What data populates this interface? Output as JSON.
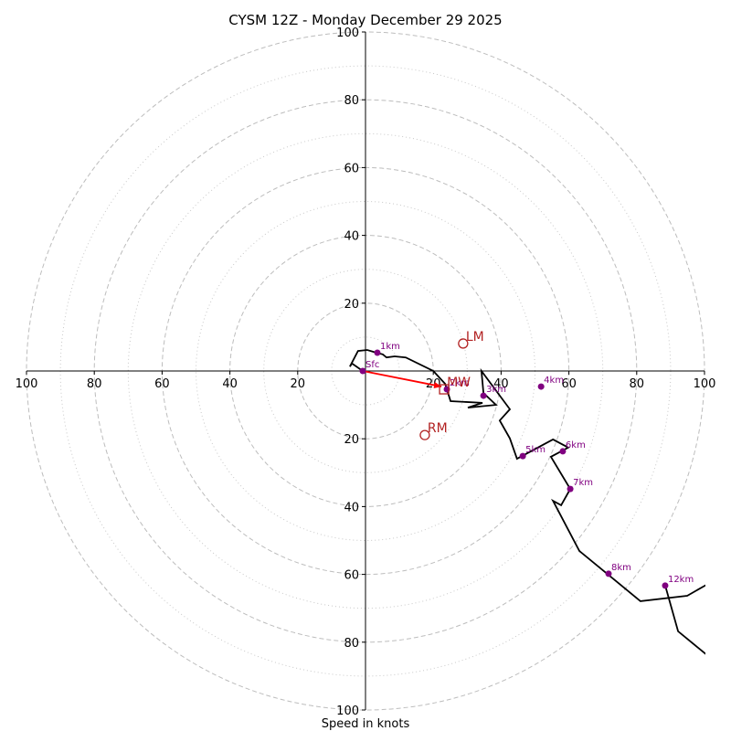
{
  "chart_data": {
    "type": "line",
    "title": "CYSM 12Z - Monday December 29 2025",
    "xlabel": "Speed in knots",
    "ylabel": "",
    "range": 100,
    "ring_major": [
      20,
      40,
      60,
      80,
      100
    ],
    "ring_minor": [
      10,
      30,
      50,
      70,
      90
    ],
    "x_tick_labels": [
      "100",
      "80",
      "60",
      "40",
      "20",
      "20",
      "40",
      "60",
      "80",
      "100"
    ],
    "x_tick_values": [
      -100,
      -80,
      -60,
      -40,
      -20,
      20,
      40,
      60,
      80,
      100
    ],
    "y_tick_labels": [
      "100",
      "80",
      "60",
      "40",
      "20",
      "20",
      "40",
      "60",
      "80",
      "100"
    ],
    "y_tick_values": [
      100,
      80,
      60,
      40,
      20,
      -20,
      -40,
      -60,
      -80,
      -100
    ],
    "grid": true,
    "hodograph": {
      "color": "#000000",
      "points": [
        [
          -0.8,
          0
        ],
        [
          -4.0,
          2.2
        ],
        [
          -4.6,
          1.3
        ],
        [
          -2.2,
          5.9
        ],
        [
          0.5,
          6.2
        ],
        [
          3.2,
          5.4
        ],
        [
          5.1,
          4.9
        ],
        [
          6.2,
          4.0
        ],
        [
          8.6,
          4.3
        ],
        [
          11.9,
          4.0
        ],
        [
          20.0,
          0
        ],
        [
          23.5,
          -3.8
        ],
        [
          25.1,
          -8.9
        ],
        [
          34.5,
          -9.4
        ],
        [
          30.2,
          -10.8
        ],
        [
          38.5,
          -10.0
        ],
        [
          34.8,
          -6.5
        ],
        [
          34.2,
          0
        ],
        [
          42.6,
          -11.3
        ],
        [
          39.6,
          -14.6
        ],
        [
          42.6,
          -19.9
        ],
        [
          44.7,
          -25.9
        ],
        [
          55.3,
          -20.2
        ],
        [
          59.8,
          -22.6
        ],
        [
          54.7,
          -25.3
        ],
        [
          60.4,
          -34.8
        ],
        [
          57.7,
          -39.6
        ],
        [
          55.3,
          -38.3
        ],
        [
          63.1,
          -53.1
        ],
        [
          81.1,
          -67.9
        ],
        [
          94.9,
          -66.3
        ],
        [
          100.5,
          -63.1
        ]
      ],
      "branch": [
        [
          88.4,
          -63.3
        ],
        [
          92.2,
          -76.8
        ],
        [
          100.5,
          -83.6
        ]
      ]
    },
    "height_markers": [
      {
        "label": "Sfc",
        "u": -0.8,
        "v": 0
      },
      {
        "label": "1km",
        "u": 3.5,
        "v": 5.4
      },
      {
        "label": "2km",
        "u": 24.0,
        "v": -5.4
      },
      {
        "label": "3km",
        "u": 34.8,
        "v": -7.3
      },
      {
        "label": "4km",
        "u": 51.8,
        "v": -4.6
      },
      {
        "label": "5km",
        "u": 46.4,
        "v": -25.1
      },
      {
        "label": "6km",
        "u": 58.2,
        "v": -23.7
      },
      {
        "label": "7km",
        "u": 60.4,
        "v": -34.8
      },
      {
        "label": "8km",
        "u": 71.7,
        "v": -59.8
      },
      {
        "label": "12km",
        "u": 88.4,
        "v": -63.3
      }
    ],
    "marker_color": "#800080",
    "mean_wind_vector": {
      "from": [
        -0.8,
        0
      ],
      "to": [
        22.4,
        -4.6
      ],
      "color": "#ff0000"
    },
    "storm_motion": [
      {
        "label": "LM",
        "u": 28.8,
        "v": 8.1,
        "shape": "circle"
      },
      {
        "label": "RM",
        "u": 17.5,
        "v": -18.9,
        "shape": "circle"
      },
      {
        "label": "MW",
        "u": 23.2,
        "v": -5.4,
        "shape": "square"
      }
    ],
    "storm_color": "#b22222"
  }
}
